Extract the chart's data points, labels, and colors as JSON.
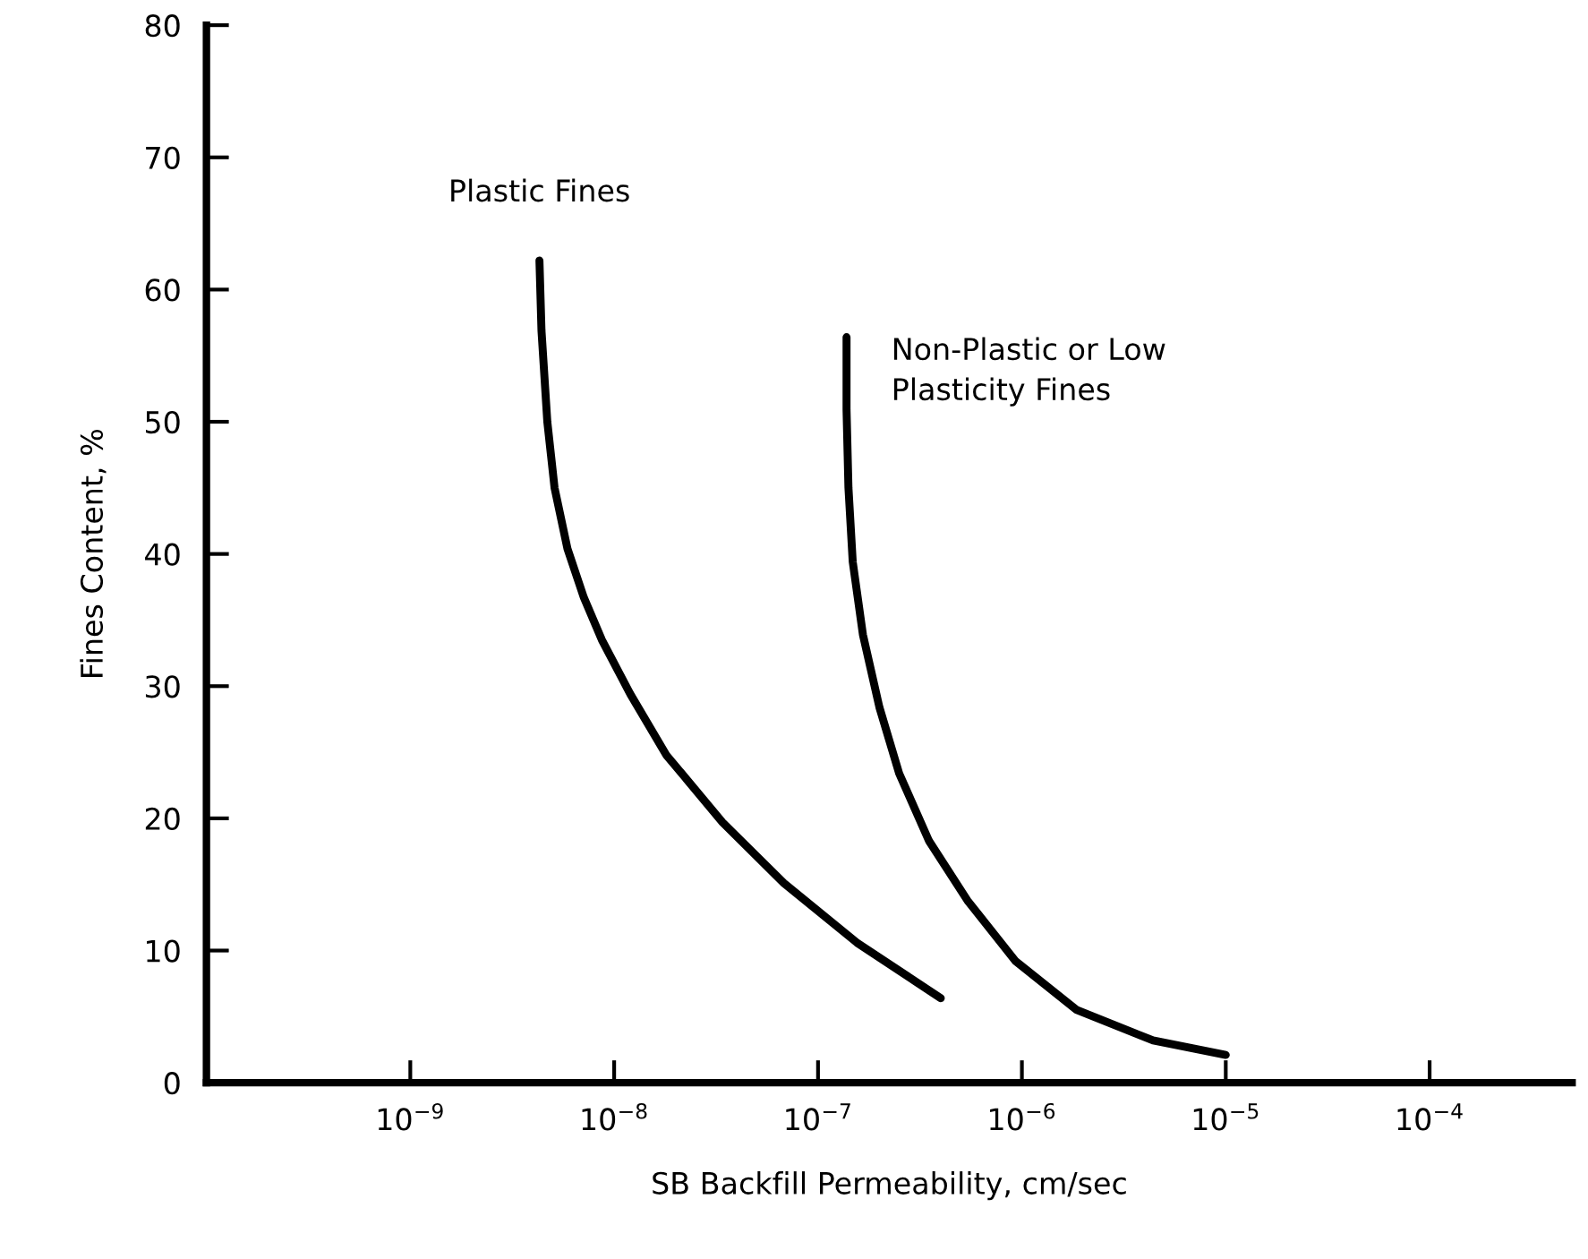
{
  "chart_data": {
    "type": "line",
    "xlabel": "SB Backfill Permeability, cm/sec",
    "ylabel": "Fines Content, %",
    "log": "x",
    "grid": false,
    "legend": false,
    "marker": "none",
    "line_style": "solid",
    "xlim": [
      1e-10,
      0.0005
    ],
    "xticks": [
      {
        "value": 1e-09,
        "label": "10$^{−9}$"
      },
      {
        "value": 1e-08,
        "label": "10$^{−8}$"
      },
      {
        "value": 1e-07,
        "label": "10$^{−7}$"
      },
      {
        "value": 1e-06,
        "label": "10$^{−6}$"
      },
      {
        "value": 1e-05,
        "label": "10$^{−5}$"
      },
      {
        "value": 0.0001,
        "label": "10$^{−4}$"
      }
    ],
    "ylim": [
      0,
      80
    ],
    "yticks": [
      0,
      10,
      20,
      30,
      40,
      50,
      60,
      70,
      80
    ],
    "series": [
      {
        "name": "Plastic Fines",
        "color": "#000000",
        "x": [
          4.3e-09,
          4.4e-09,
          4.7e-09,
          5.1e-09,
          5.9e-09,
          7.1e-09,
          8.7e-09,
          1.2e-08,
          1.8e-08,
          3.4e-08,
          6.8e-08,
          1.55e-07,
          4e-07
        ],
        "values": [
          62.2,
          56.9,
          50.0,
          45.0,
          40.4,
          36.7,
          33.5,
          29.4,
          24.8,
          19.7,
          15.1,
          10.6,
          6.4
        ]
      },
      {
        "name": "Non-Plastic or Low\nPlasticity Fines",
        "color": "#000000",
        "x": [
          1.38e-07,
          1.38e-07,
          1.41e-07,
          1.48e-07,
          1.66e-07,
          2e-07,
          2.5e-07,
          3.5e-07,
          5.4e-07,
          9.3e-07,
          1.86e-06,
          4.4e-06,
          1e-05
        ],
        "values": [
          56.4,
          50.9,
          45.0,
          39.4,
          33.9,
          28.4,
          23.4,
          18.3,
          13.8,
          9.2,
          5.5,
          3.2,
          2.1
        ]
      }
    ]
  }
}
